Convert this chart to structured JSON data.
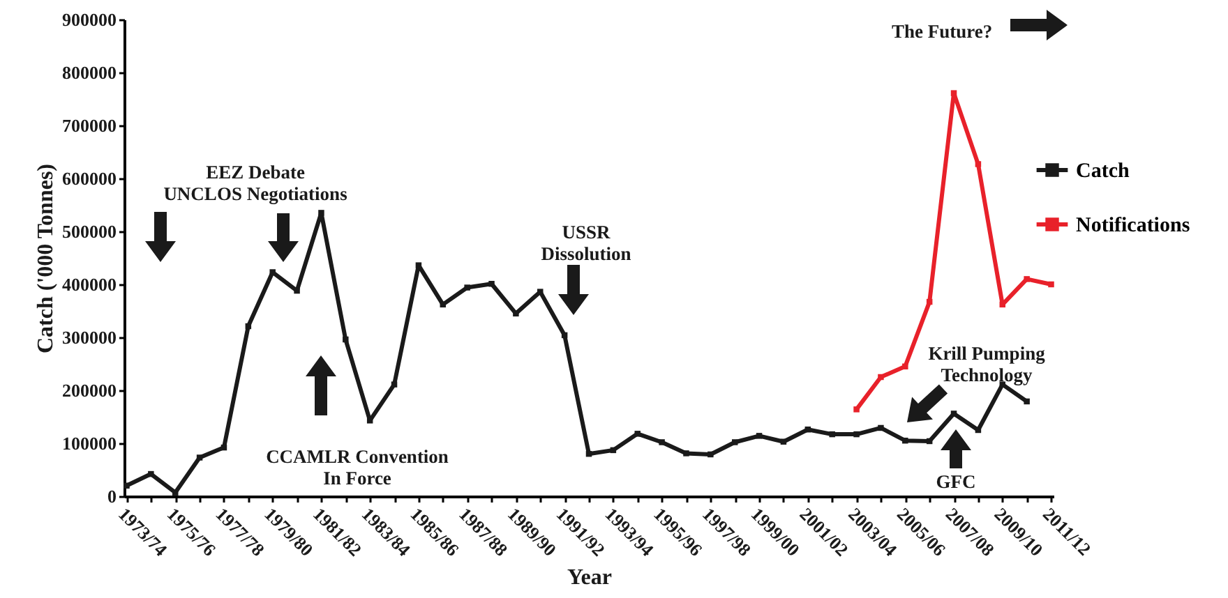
{
  "chart_data": {
    "type": "line",
    "xlabel": "Year",
    "ylabel": "Catch ('000 Tonnes)",
    "categories": [
      "1973/74",
      null,
      "1975/76",
      null,
      "1977/78",
      null,
      "1979/80",
      null,
      "1981/82",
      null,
      "1983/84",
      null,
      "1985/86",
      null,
      "1987/88",
      null,
      "1989/90",
      null,
      "1991/92",
      null,
      "1993/94",
      null,
      "1995/96",
      null,
      "1997/98",
      null,
      "1999/00",
      null,
      "2001/02",
      null,
      "2003/04",
      null,
      "2005/06",
      null,
      "2007/08",
      null,
      "2009/10",
      null,
      "2011/12"
    ],
    "series": [
      {
        "name": "Catch",
        "color": "#1a1a1a",
        "values": [
          20000,
          42000,
          7000,
          73000,
          92000,
          321000,
          423000,
          388000,
          535000,
          296000,
          143000,
          211000,
          436000,
          362000,
          394000,
          401000,
          345000,
          386000,
          304000,
          80000,
          87000,
          118000,
          102000,
          81000,
          79000,
          102000,
          114000,
          103000,
          126000,
          117000,
          117000,
          129000,
          105000,
          104000,
          156000,
          125000,
          211000,
          179000,
          null
        ]
      },
      {
        "name": "Notifications",
        "color": "#e8212a",
        "values": [
          null,
          null,
          null,
          null,
          null,
          null,
          null,
          null,
          null,
          null,
          null,
          null,
          null,
          null,
          null,
          null,
          null,
          null,
          null,
          null,
          null,
          null,
          null,
          null,
          null,
          null,
          null,
          null,
          null,
          null,
          164000,
          225000,
          245000,
          367000,
          761000,
          627000,
          362000,
          410000,
          400000
        ]
      }
    ],
    "ylim": [
      0,
      900000
    ],
    "yticks": [
      0,
      100000,
      200000,
      300000,
      400000,
      500000,
      600000,
      700000,
      800000,
      900000
    ],
    "legend": "right",
    "marker": "square",
    "annotations": [
      "EEZ Debate\nUNCLOS Negotiations",
      "CCAMLR Convention\nIn Force",
      "USSR\nDissolution",
      "Krill Pumping\nTechnology",
      "GFC",
      "The Future?"
    ]
  }
}
